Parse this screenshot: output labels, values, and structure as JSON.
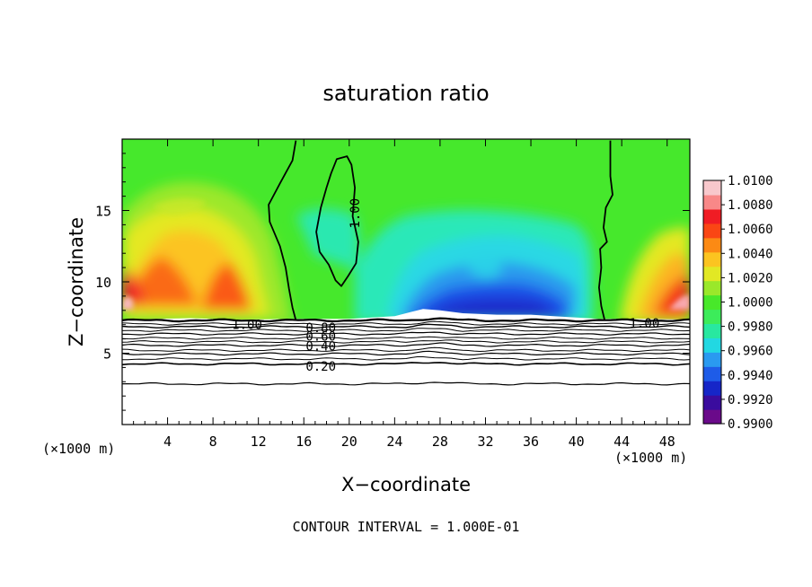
{
  "chart_data": {
    "type": "heatmap",
    "title": "saturation ratio",
    "xlabel": "X−coordinate",
    "ylabel": "Z−coordinate",
    "x_unit_left": "(×1000 m)",
    "x_unit_right": "(×1000 m)",
    "xlim": [
      0,
      50
    ],
    "ylim": [
      0,
      20
    ],
    "x_ticks": [
      "4",
      "8",
      "12",
      "16",
      "20",
      "24",
      "28",
      "32",
      "36",
      "40",
      "44",
      "48"
    ],
    "y_ticks": [
      "5",
      "10",
      "15"
    ],
    "x_tick_values": [
      4,
      8,
      12,
      16,
      20,
      24,
      28,
      32,
      36,
      40,
      44,
      48
    ],
    "y_tick_values": [
      5,
      10,
      15
    ],
    "colorbar": {
      "min": 0.99,
      "max": 1.01,
      "labels": [
        "1.0100",
        "1.0080",
        "1.0060",
        "1.0040",
        "1.0020",
        "1.0000",
        "0.9980",
        "0.9960",
        "0.9940",
        "0.9920",
        "0.9900"
      ],
      "colors": [
        "#6a0a8a",
        "#3a0c9e",
        "#1626c8",
        "#1e5ce8",
        "#2a9af0",
        "#22d8e2",
        "#28e8a0",
        "#3cec5a",
        "#48e82a",
        "#9ae82a",
        "#e2e824",
        "#fcc420",
        "#fc8a14",
        "#fa4614",
        "#f01c24",
        "#f88888",
        "#f8c8cc"
      ]
    },
    "contour_labels": [
      {
        "text": "1.00",
        "x": 20.5,
        "z": 14.8,
        "rotate": -90
      },
      {
        "text": "1.00",
        "x": 11,
        "z": 7.0
      },
      {
        "text": "1.00",
        "x": 46,
        "z": 7.1
      },
      {
        "text": "0.80",
        "x": 17.5,
        "z": 6.8
      },
      {
        "text": "0.60",
        "x": 17.5,
        "z": 6.2
      },
      {
        "text": "0.40",
        "x": 17.5,
        "z": 5.5
      },
      {
        "text": "0.20",
        "x": 17.5,
        "z": 4.1
      }
    ],
    "low_contour_levels": [
      {
        "z": 7.3,
        "width": 2.2
      },
      {
        "z": 7.05,
        "width": 1.0
      },
      {
        "z": 6.85,
        "width": 1.4
      },
      {
        "z": 6.6,
        "width": 1.0
      },
      {
        "z": 6.35,
        "width": 1.2
      },
      {
        "z": 6.05,
        "width": 1.0
      },
      {
        "z": 5.8,
        "width": 1.0
      },
      {
        "z": 5.55,
        "width": 1.2
      },
      {
        "z": 5.2,
        "width": 1.0
      },
      {
        "z": 4.95,
        "width": 1.2
      },
      {
        "z": 4.6,
        "width": 1.0
      },
      {
        "z": 4.25,
        "width": 1.6
      },
      {
        "z": 2.85,
        "width": 1.2
      }
    ],
    "unity_contours": [
      [
        [
          15.3,
          7.3
        ],
        [
          15.0,
          8.2
        ],
        [
          14.7,
          9.5
        ],
        [
          14.4,
          11.0
        ],
        [
          13.9,
          12.5
        ],
        [
          13.0,
          14.2
        ],
        [
          12.9,
          15.4
        ],
        [
          13.9,
          16.9
        ],
        [
          15.0,
          18.5
        ],
        [
          15.3,
          19.9
        ]
      ],
      [
        [
          18.4,
          17.6
        ],
        [
          18.9,
          18.6
        ],
        [
          19.8,
          18.8
        ],
        [
          20.2,
          18.2
        ],
        [
          20.5,
          16.6
        ],
        [
          20.3,
          14.6
        ],
        [
          20.8,
          12.8
        ],
        [
          20.6,
          11.3
        ],
        [
          19.9,
          10.4
        ],
        [
          19.3,
          9.7
        ],
        [
          18.8,
          10.1
        ],
        [
          18.2,
          11.2
        ],
        [
          17.4,
          12.1
        ],
        [
          17.1,
          13.5
        ],
        [
          17.5,
          15.2
        ],
        [
          18.0,
          16.6
        ],
        [
          18.4,
          17.6
        ]
      ],
      [
        [
          43.0,
          19.9
        ],
        [
          43.0,
          17.4
        ],
        [
          43.2,
          16.1
        ],
        [
          42.6,
          15.2
        ],
        [
          42.4,
          13.8
        ],
        [
          42.7,
          12.8
        ],
        [
          42.1,
          12.3
        ],
        [
          42.2,
          11.0
        ],
        [
          42.0,
          9.6
        ],
        [
          42.2,
          8.3
        ],
        [
          42.5,
          7.3
        ]
      ]
    ],
    "surface_boundary": [
      [
        0,
        7.35
      ],
      [
        3.0,
        7.4
      ],
      [
        6.0,
        7.45
      ],
      [
        10.0,
        7.35
      ],
      [
        15.0,
        7.4
      ],
      [
        20.0,
        7.4
      ],
      [
        24.0,
        7.6
      ],
      [
        25.5,
        7.9
      ],
      [
        26.5,
        8.1
      ],
      [
        28.0,
        8.0
      ],
      [
        30.0,
        7.8
      ],
      [
        33.0,
        7.7
      ],
      [
        36.0,
        7.7
      ],
      [
        38.0,
        7.6
      ],
      [
        42.0,
        7.4
      ],
      [
        46.0,
        7.4
      ],
      [
        50.0,
        7.35
      ]
    ],
    "note": "CONTOUR INTERVAL = 1.000E-01"
  }
}
